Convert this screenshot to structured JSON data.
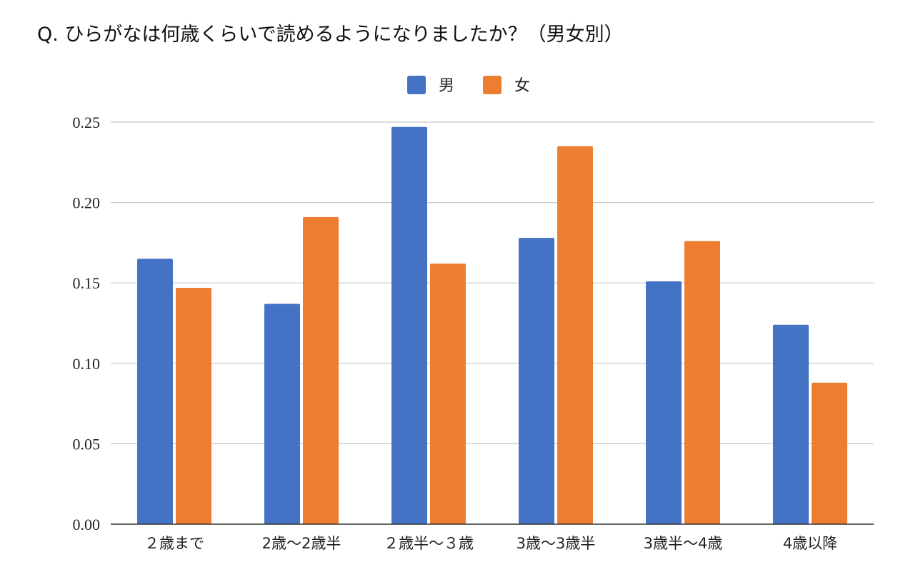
{
  "chart_data": {
    "type": "bar",
    "title": "Q. ひらがなは何歳くらいで読めるようになりましたか？（男女別）",
    "xlabel": "",
    "ylabel": "",
    "categories": [
      "２歳まで",
      "2歳〜2歳半",
      "２歳半〜３歳",
      "3歳〜3歳半",
      "3歳半〜4歳",
      "4歳以降"
    ],
    "series": [
      {
        "name": "男",
        "color": "#4472c4",
        "values": [
          0.165,
          0.137,
          0.247,
          0.178,
          0.151,
          0.124
        ]
      },
      {
        "name": "女",
        "color": "#ed7d31",
        "values": [
          0.147,
          0.191,
          0.162,
          0.235,
          0.176,
          0.088
        ]
      }
    ],
    "ylim": [
      0,
      0.25
    ],
    "yticks": [
      "0.00",
      "0.05",
      "0.10",
      "0.15",
      "0.20",
      "0.25"
    ],
    "grid": true,
    "legend": "top-center"
  }
}
